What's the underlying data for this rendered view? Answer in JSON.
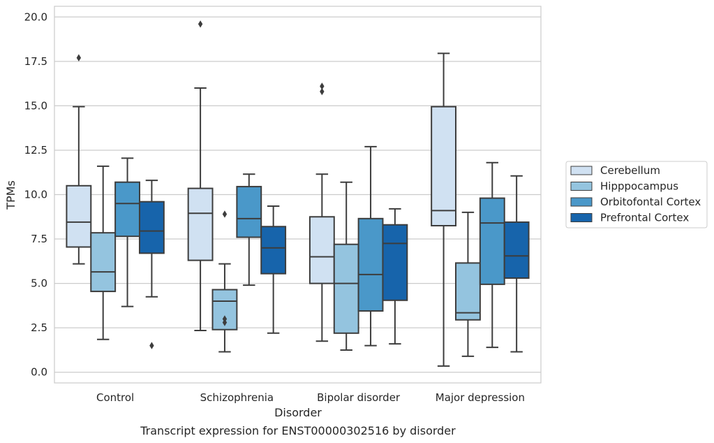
{
  "chart_data": {
    "type": "boxplot",
    "title": "",
    "caption": "Transcript expression for ENST00000302516 by disorder",
    "xlabel": "Disorder",
    "ylabel": "TPMs",
    "ylim": [
      -0.6,
      20.6
    ],
    "yticks": [
      0,
      2.5,
      5,
      7.5,
      10,
      12.5,
      15,
      17.5,
      20
    ],
    "ytick_labels": [
      "0.0",
      "2.5",
      "5.0",
      "7.5",
      "10.0",
      "12.5",
      "15.0",
      "17.5",
      "20.0"
    ],
    "grid": "horizontal",
    "legend_position": "right",
    "categories": [
      "Control",
      "Schizophrenia",
      "Bipolar disorder",
      "Major depression"
    ],
    "series": [
      {
        "name": "Cerebellum",
        "color": "#d0e1f2",
        "boxes": [
          {
            "whisker_low": 6.1,
            "q1": 7.05,
            "median": 8.45,
            "q3": 10.5,
            "whisker_high": 14.95,
            "outliers": [
              17.7
            ]
          },
          {
            "whisker_low": 2.35,
            "q1": 6.3,
            "median": 8.95,
            "q3": 10.35,
            "whisker_high": 16.0,
            "outliers": [
              19.6
            ]
          },
          {
            "whisker_low": 1.75,
            "q1": 5.0,
            "median": 6.5,
            "q3": 8.75,
            "whisker_high": 11.15,
            "outliers": [
              15.8,
              16.1
            ]
          },
          {
            "whisker_low": 0.35,
            "q1": 8.25,
            "median": 9.1,
            "q3": 14.95,
            "whisker_high": 17.95,
            "outliers": []
          }
        ]
      },
      {
        "name": "Hipppocampus",
        "color": "#94c4df",
        "boxes": [
          {
            "whisker_low": 1.85,
            "q1": 4.55,
            "median": 5.65,
            "q3": 7.85,
            "whisker_high": 11.6,
            "outliers": []
          },
          {
            "whisker_low": 1.15,
            "q1": 2.4,
            "median": 4.0,
            "q3": 4.65,
            "whisker_high": 6.1,
            "outliers": [
              8.9,
              2.8,
              3.0
            ]
          },
          {
            "whisker_low": 1.25,
            "q1": 2.2,
            "median": 5.0,
            "q3": 7.2,
            "whisker_high": 10.7,
            "outliers": []
          },
          {
            "whisker_low": 0.9,
            "q1": 2.95,
            "median": 3.35,
            "q3": 6.15,
            "whisker_high": 9.0,
            "outliers": []
          }
        ]
      },
      {
        "name": "Orbitofontal Cortex",
        "color": "#4a98c9",
        "boxes": [
          {
            "whisker_low": 3.7,
            "q1": 7.65,
            "median": 9.5,
            "q3": 10.7,
            "whisker_high": 12.05,
            "outliers": []
          },
          {
            "whisker_low": 4.9,
            "q1": 7.6,
            "median": 8.65,
            "q3": 10.45,
            "whisker_high": 11.15,
            "outliers": []
          },
          {
            "whisker_low": 1.5,
            "q1": 3.45,
            "median": 5.5,
            "q3": 8.65,
            "whisker_high": 12.7,
            "outliers": []
          },
          {
            "whisker_low": 1.4,
            "q1": 4.95,
            "median": 8.4,
            "q3": 9.8,
            "whisker_high": 11.8,
            "outliers": []
          }
        ]
      },
      {
        "name": "Prefrontal Cortex",
        "color": "#1764ab",
        "boxes": [
          {
            "whisker_low": 4.25,
            "q1": 6.7,
            "median": 7.95,
            "q3": 9.6,
            "whisker_high": 10.8,
            "outliers": [
              1.5
            ]
          },
          {
            "whisker_low": 2.2,
            "q1": 5.55,
            "median": 7.0,
            "q3": 8.2,
            "whisker_high": 9.35,
            "outliers": []
          },
          {
            "whisker_low": 1.6,
            "q1": 4.05,
            "median": 7.25,
            "q3": 8.3,
            "whisker_high": 9.2,
            "outliers": []
          },
          {
            "whisker_low": 1.15,
            "q1": 5.3,
            "median": 6.55,
            "q3": 8.45,
            "whisker_high": 11.05,
            "outliers": []
          }
        ]
      }
    ]
  }
}
